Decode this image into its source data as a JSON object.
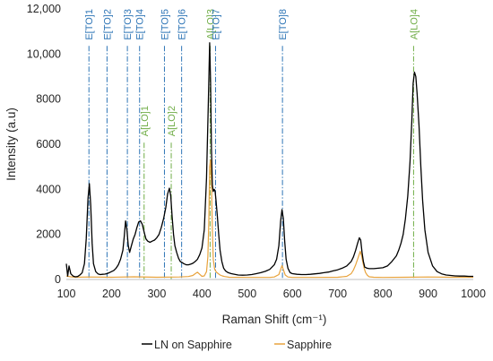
{
  "chart_data": {
    "type": "line",
    "title": "",
    "xlabel": "Raman Shift (cm⁻¹)",
    "ylabel": "Intensity (a.u)",
    "xlim": [
      100,
      1000
    ],
    "ylim": [
      0,
      12000
    ],
    "x_ticks": [
      "100",
      "200",
      "300",
      "400",
      "500",
      "600",
      "700",
      "800",
      "900",
      "1000"
    ],
    "y_ticks": [
      "0",
      "2000",
      "4000",
      "6000",
      "8000",
      "10,000",
      "12,000"
    ],
    "grid": false,
    "legend_position": "bottom",
    "series": [
      {
        "name": "LN on Sapphire",
        "color": "#000000",
        "x": [
          100,
          103,
          106,
          110,
          115,
          120,
          125,
          130,
          135,
          140,
          144,
          148,
          151,
          154,
          157,
          160,
          165,
          170,
          175,
          180,
          185,
          190,
          195,
          200,
          205,
          210,
          215,
          220,
          225,
          228,
          231,
          234,
          237,
          240,
          244,
          248,
          252,
          256,
          260,
          264,
          268,
          272,
          276,
          280,
          285,
          290,
          295,
          300,
          305,
          310,
          315,
          320,
          324,
          328,
          331,
          334,
          337,
          340,
          344,
          348,
          352,
          356,
          360,
          365,
          370,
          375,
          380,
          385,
          390,
          395,
          400,
          405,
          410,
          414,
          417,
          419,
          421,
          423,
          425,
          427,
          429,
          431,
          434,
          437,
          440,
          444,
          448,
          452,
          458,
          465,
          470,
          480,
          490,
          500,
          510,
          520,
          530,
          540,
          550,
          560,
          565,
          570,
          574,
          577,
          580,
          583,
          586,
          590,
          595,
          600,
          610,
          620,
          630,
          640,
          650,
          660,
          670,
          680,
          690,
          700,
          710,
          720,
          730,
          735,
          740,
          744,
          748,
          751,
          754,
          757,
          760,
          765,
          770,
          780,
          790,
          800,
          810,
          820,
          830,
          835,
          840,
          845,
          850,
          855,
          860,
          864,
          867,
          870,
          873,
          876,
          880,
          884,
          888,
          893,
          900,
          910,
          920,
          930,
          940,
          950,
          960,
          970,
          980,
          990,
          1000
        ],
        "y": [
          700,
          150,
          600,
          250,
          150,
          120,
          130,
          200,
          300,
          700,
          1800,
          3600,
          4250,
          3300,
          1600,
          700,
          350,
          250,
          220,
          230,
          240,
          260,
          300,
          350,
          400,
          500,
          650,
          900,
          1300,
          1900,
          2600,
          2200,
          1500,
          1200,
          1500,
          1800,
          2000,
          2300,
          2550,
          2600,
          2450,
          2100,
          1800,
          1700,
          1650,
          1700,
          1750,
          1850,
          2000,
          2300,
          2700,
          3200,
          3800,
          4050,
          3700,
          2800,
          2000,
          1500,
          1200,
          950,
          800,
          750,
          700,
          650,
          650,
          680,
          720,
          800,
          900,
          1100,
          1400,
          2200,
          4500,
          7800,
          10500,
          8800,
          5800,
          4200,
          3900,
          4000,
          3900,
          3500,
          2800,
          2000,
          1300,
          800,
          500,
          380,
          300,
          260,
          240,
          200,
          190,
          200,
          220,
          260,
          300,
          360,
          450,
          650,
          900,
          1500,
          2600,
          3100,
          2700,
          1700,
          900,
          500,
          300,
          260,
          230,
          220,
          220,
          230,
          250,
          270,
          300,
          330,
          380,
          430,
          500,
          600,
          800,
          1000,
          1300,
          1600,
          1850,
          1750,
          1200,
          800,
          550,
          500,
          480,
          480,
          500,
          520,
          600,
          800,
          1050,
          1300,
          1600,
          2000,
          2700,
          3700,
          5200,
          7000,
          8700,
          9200,
          9000,
          8200,
          6800,
          5000,
          3500,
          2200,
          1200,
          600,
          350,
          250,
          200,
          180,
          160,
          150,
          150,
          140,
          140
        ]
      },
      {
        "name": "Sapphire",
        "color": "#e8a33d",
        "x": [
          100,
          110,
          120,
          150,
          200,
          250,
          300,
          350,
          370,
          380,
          385,
          390,
          395,
          400,
          405,
          410,
          413,
          415,
          417,
          419,
          421,
          423,
          425,
          428,
          432,
          436,
          440,
          445,
          450,
          460,
          500,
          550,
          560,
          570,
          574,
          577,
          580,
          584,
          590,
          600,
          650,
          700,
          720,
          730,
          735,
          740,
          745,
          750,
          753,
          756,
          759,
          762,
          766,
          770,
          780,
          800,
          850,
          900,
          950,
          1000
        ],
        "y": [
          150,
          120,
          100,
          110,
          100,
          120,
          100,
          110,
          130,
          180,
          260,
          320,
          230,
          140,
          160,
          350,
          1000,
          2500,
          5000,
          5300,
          4300,
          2200,
          900,
          450,
          320,
          260,
          200,
          160,
          130,
          100,
          90,
          90,
          110,
          220,
          450,
          620,
          440,
          200,
          110,
          90,
          90,
          100,
          140,
          260,
          420,
          650,
          950,
          1250,
          1050,
          750,
          480,
          300,
          180,
          120,
          100,
          90,
          100,
          110,
          100,
          100
        ]
      }
    ],
    "mode_lines": [
      {
        "label": "E[TO]1",
        "x": 150,
        "color": "#2e75b6"
      },
      {
        "label": "E[TO]2",
        "x": 190,
        "color": "#2e75b6"
      },
      {
        "label": "E[TO]3",
        "x": 235,
        "color": "#2e75b6"
      },
      {
        "label": "E[TO]4",
        "x": 262,
        "color": "#2e75b6"
      },
      {
        "label": "A[LO]1",
        "x": 272,
        "color": "#70ad47"
      },
      {
        "label": "E[TO]5",
        "x": 317,
        "color": "#2e75b6"
      },
      {
        "label": "A[LO]2",
        "x": 332,
        "color": "#70ad47"
      },
      {
        "label": "E[TO]6",
        "x": 355,
        "color": "#2e75b6"
      },
      {
        "label": "A[LO]3",
        "x": 418,
        "color": "#70ad47"
      },
      {
        "label": "E[TO]7",
        "x": 430,
        "color": "#2e75b6"
      },
      {
        "label": "E[TO]8",
        "x": 578,
        "color": "#2e75b6"
      },
      {
        "label": "A[LO]4",
        "x": 868,
        "color": "#70ad47"
      }
    ],
    "mode_label_rows": {
      "E[TO]1": "top",
      "E[TO]2": "top",
      "E[TO]3": "top",
      "E[TO]4": "top",
      "E[TO]5": "top",
      "E[TO]6": "top",
      "E[TO]7": "top",
      "E[TO]8": "top",
      "A[LO]3": "top",
      "A[LO]4": "top",
      "A[LO]1": "mid",
      "A[LO]2": "mid"
    }
  }
}
